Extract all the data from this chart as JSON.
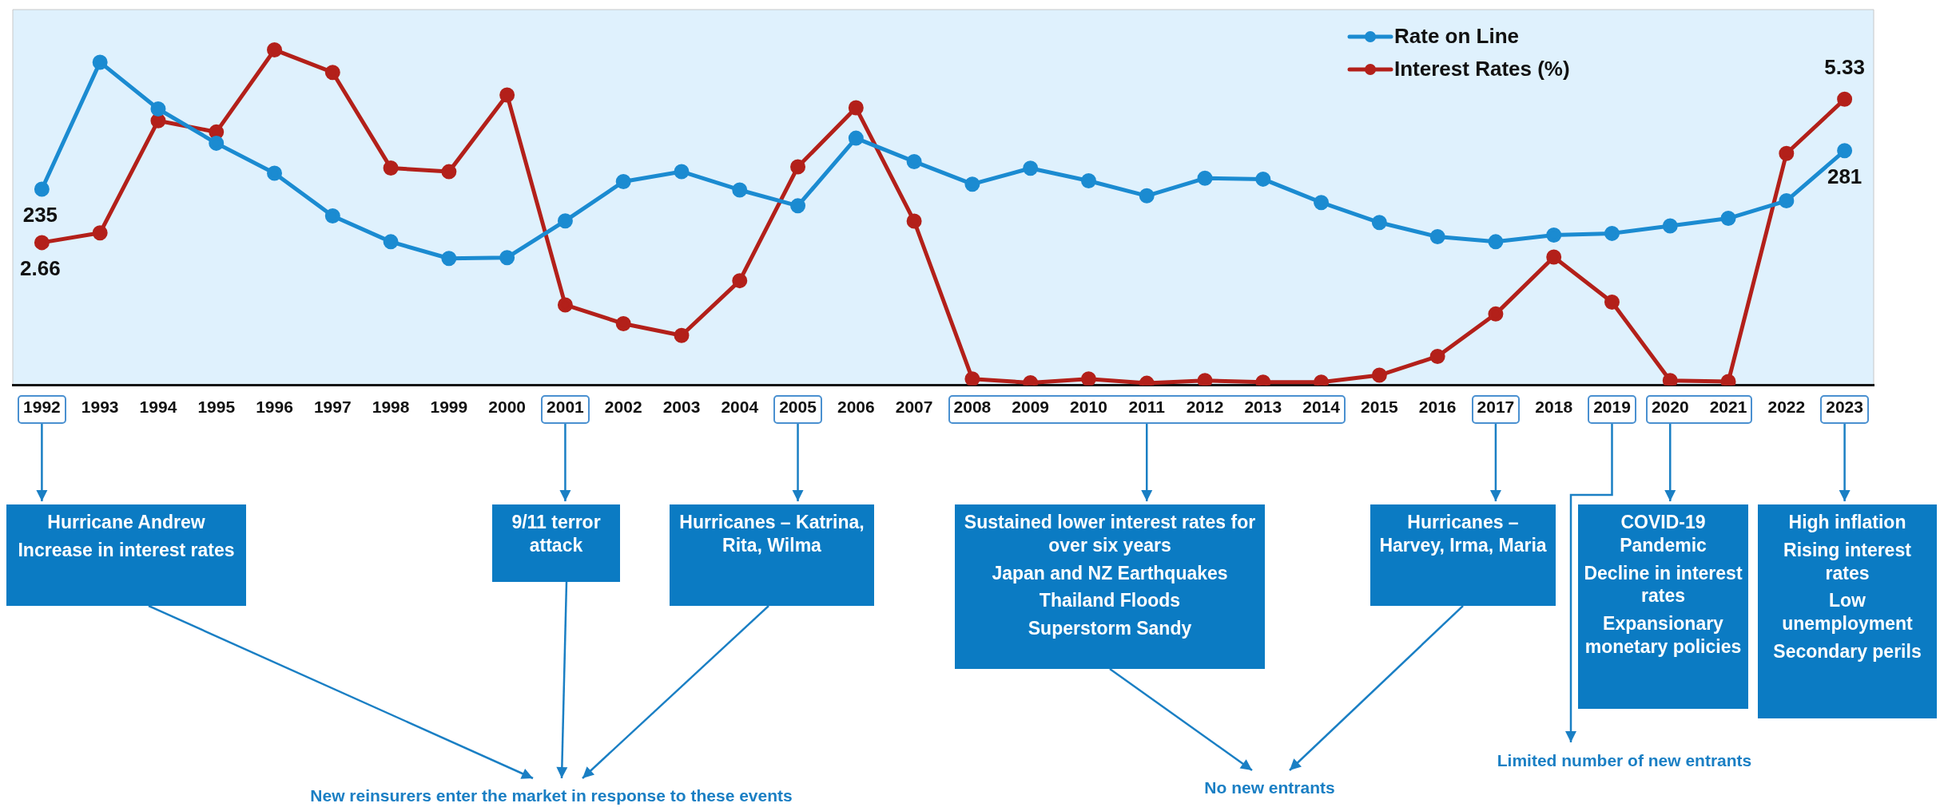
{
  "chart_data": {
    "type": "line",
    "categories": [
      "1992",
      "1993",
      "1994",
      "1995",
      "1996",
      "1997",
      "1998",
      "1999",
      "2000",
      "2001",
      "2002",
      "2003",
      "2004",
      "2005",
      "2006",
      "2007",
      "2008",
      "2009",
      "2010",
      "2011",
      "2012",
      "2013",
      "2014",
      "2015",
      "2016",
      "2017",
      "2018",
      "2019",
      "2020",
      "2021",
      "2022",
      "2023"
    ],
    "series": [
      {
        "name": "Rate on Line",
        "color": "#1b8bd1",
        "values": [
          235,
          387,
          331,
          290,
          254,
          203,
          172,
          152,
          153,
          197,
          244,
          256,
          234,
          215,
          296,
          268,
          241,
          260,
          245,
          227,
          248,
          247,
          219,
          195,
          178,
          172,
          180,
          182,
          191,
          200,
          221,
          281
        ],
        "value_labels": [
          "235",
          null,
          null,
          null,
          null,
          null,
          null,
          null,
          null,
          null,
          null,
          null,
          null,
          null,
          null,
          null,
          null,
          null,
          null,
          null,
          null,
          null,
          null,
          null,
          null,
          null,
          null,
          null,
          null,
          null,
          null,
          "281"
        ]
      },
      {
        "name": "Interest Rates (%)",
        "color": "#b3201a",
        "axis": "y2",
        "values": [
          2.66,
          2.84,
          4.93,
          4.72,
          6.25,
          5.83,
          4.05,
          3.98,
          5.41,
          1.5,
          1.15,
          0.93,
          1.95,
          4.07,
          5.17,
          3.06,
          0.12,
          0.05,
          0.12,
          0.04,
          0.09,
          0.06,
          0.06,
          0.19,
          0.54,
          1.33,
          2.39,
          1.55,
          0.09,
          0.07,
          4.32,
          5.33
        ],
        "value_labels": [
          "2.66",
          null,
          null,
          null,
          null,
          null,
          null,
          null,
          null,
          null,
          null,
          null,
          null,
          null,
          null,
          null,
          null,
          null,
          null,
          null,
          null,
          null,
          null,
          null,
          null,
          null,
          null,
          null,
          null,
          null,
          null,
          "5.33"
        ]
      }
    ],
    "ylim": [
      0,
      450
    ],
    "y2lim": [
      0,
      7
    ],
    "tick_labels": "x",
    "legend": "top right",
    "marker": "circle",
    "line_style": "solid",
    "annotations": [
      "Hurricane Andrew\nIncrease in interest rates",
      "9/11 terror attack",
      "Hurricanes – Katrina, Rita, Wilma",
      "Sustained lower interest rates for over six years\nJapan and NZ Earthquakes\nThailand Floods\nSuperstorm Sandy",
      "Hurricanes – Harvey, Irma, Maria",
      "COVID-19 Pandemic\nDecline in interest rates\nExpansionary monetary policies",
      "High inflation\nRising interest rates\nLow unemployment\nSecondary perils",
      "New reinsurers enter the market in response to these events",
      "No new entrants",
      "Limited number of new entrants"
    ]
  }
}
